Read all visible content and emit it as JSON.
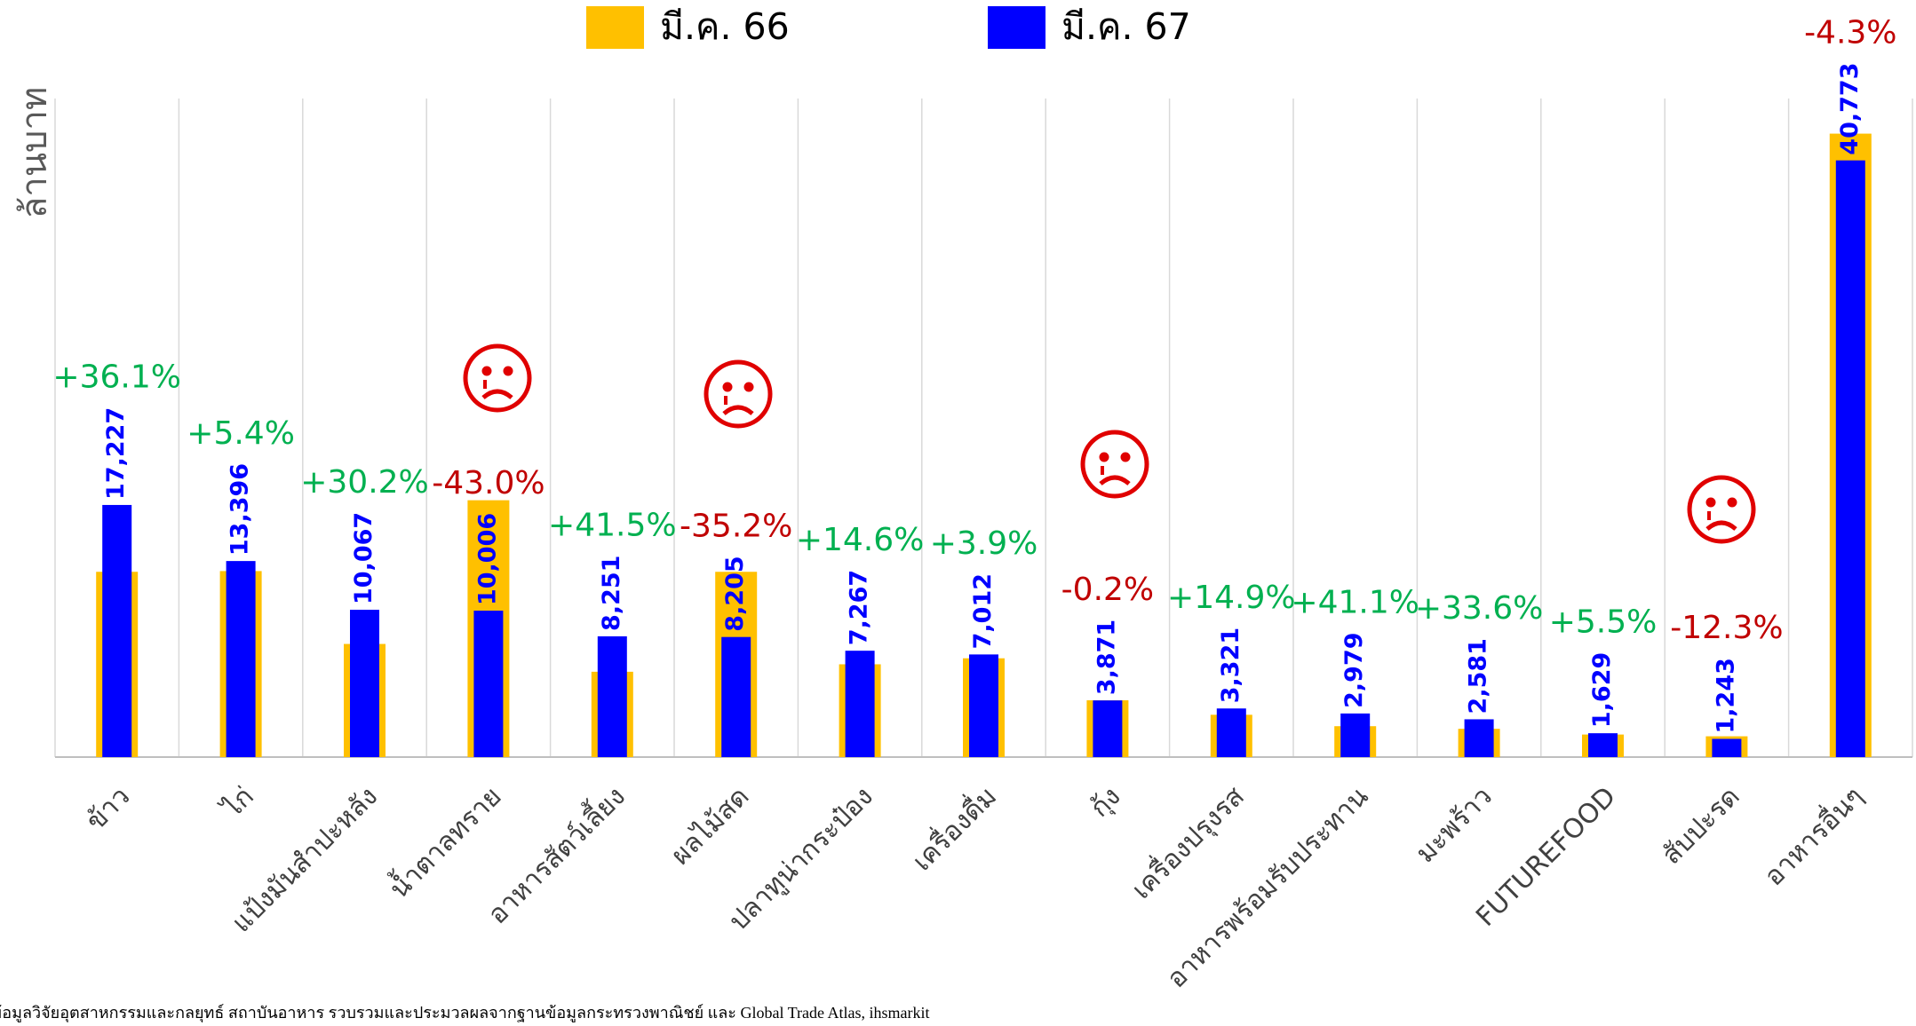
{
  "chart_data": {
    "type": "bar",
    "y_label": "ล้านบาท",
    "categories": [
      "ข้าว",
      "ไก่",
      "แป้งมันสำปะหลัง",
      "น้ำตาลทราย",
      "อาหารสัตว์เลี้ยง",
      "ผลไม้สด",
      "ปลาทูน่ากระป๋อง",
      "เครื่องดื่ม",
      "กุ้ง",
      "เครื่องปรุงรส",
      "อาหารพร้อมรับประทาน",
      "มะพร้าว",
      "FUTUREFOOD",
      "สับปะรด",
      "อาหารอื่นๆ"
    ],
    "series": [
      {
        "name": "มี.ค. 66",
        "color": "#ffc000",
        "values": [
          12660,
          12710,
          7730,
          17550,
          5830,
          12660,
          6340,
          6750,
          3880,
          2890,
          2110,
          1930,
          1540,
          1420,
          42600
        ]
      },
      {
        "name": "มี.ค. 67",
        "color": "#0000ff",
        "values": [
          17227,
          13396,
          10067,
          10006,
          8251,
          8205,
          7267,
          7012,
          3871,
          3321,
          2979,
          2581,
          1629,
          1243,
          40773
        ],
        "value_labels": [
          "17,227",
          "13,396",
          "10,067",
          "10,006",
          "8,251",
          "8,205",
          "7,267",
          "7,012",
          "3,871",
          "3,321",
          "2,979",
          "2,581",
          "1,629",
          "1,243",
          "40,773"
        ]
      }
    ],
    "annotations": [
      {
        "text": "+36.1%",
        "color": "#00b050"
      },
      {
        "text": "+5.4%",
        "color": "#00b050"
      },
      {
        "text": "+30.2%",
        "color": "#00b050"
      },
      {
        "text": "-43.0%",
        "color": "#c00000"
      },
      {
        "text": "+41.5%",
        "color": "#00b050"
      },
      {
        "text": "-35.2%",
        "color": "#c00000"
      },
      {
        "text": "+14.6%",
        "color": "#00b050"
      },
      {
        "text": "+3.9%",
        "color": "#00b050"
      },
      {
        "text": "-0.2%",
        "color": "#c00000"
      },
      {
        "text": "+14.9%",
        "color": "#00b050"
      },
      {
        "text": "+41.1%",
        "color": "#00b050"
      },
      {
        "text": "+33.6%",
        "color": "#00b050"
      },
      {
        "text": "+5.5%",
        "color": "#00b050"
      },
      {
        "text": "-12.3%",
        "color": "#c00000"
      },
      {
        "text": "-4.3%",
        "color": "#c00000"
      }
    ],
    "ylim": [
      0,
      45000
    ],
    "source": "ข้อมูลวิจัยอุตสาหกรรมและกลยุทธ์ สถาบันอาหาร รวบรวมและประมวลผลจากฐานข้อมูลกระทรวงพาณิชย์ และ Global Trade Atlas, ihsmarkit"
  }
}
